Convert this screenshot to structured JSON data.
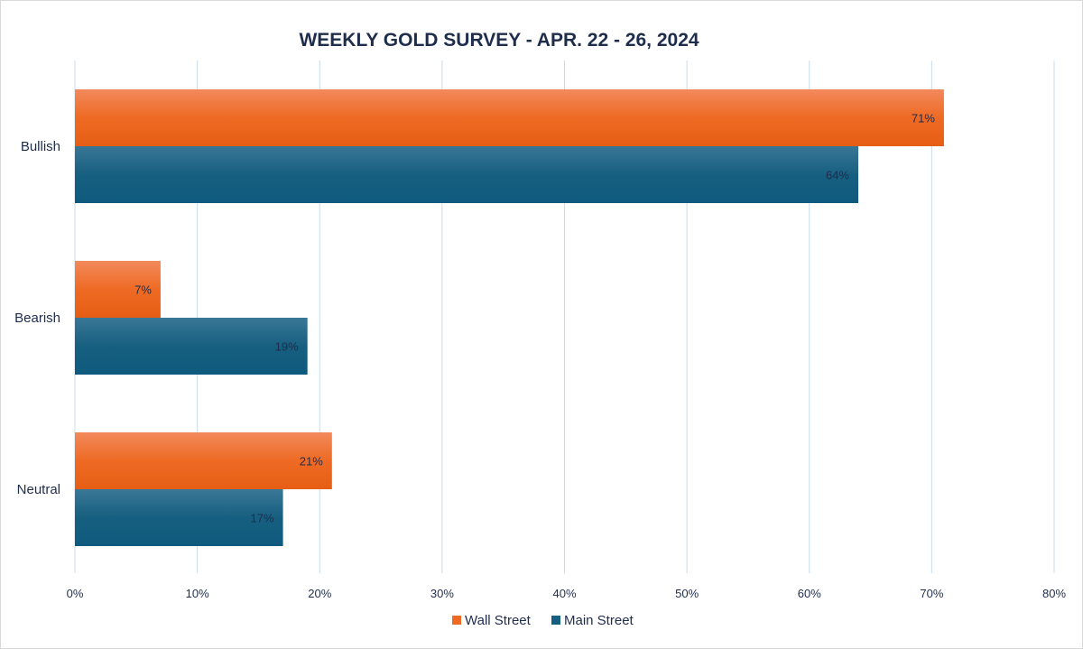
{
  "chart_data": {
    "type": "bar",
    "orientation": "horizontal",
    "title": "WEEKLY GOLD SURVEY - APR. 22 - 26, 2024",
    "categories": [
      "Bullish",
      "Bearish",
      "Neutral"
    ],
    "series": [
      {
        "name": "Wall Street",
        "values": [
          71,
          7,
          21
        ],
        "labels": [
          "71%",
          "7%",
          "21%"
        ],
        "color": "#ee6a24",
        "color_light": "#f28a5c",
        "color_dark": "#e65e14"
      },
      {
        "name": "Main Street",
        "values": [
          64,
          19,
          17
        ],
        "labels": [
          "64%",
          "19%",
          "17%"
        ],
        "color": "#175f80",
        "color_light": "#3a7796",
        "color_dark": "#0e5a7e"
      }
    ],
    "xlim": [
      0,
      80
    ],
    "xticks": [
      0,
      10,
      20,
      30,
      40,
      50,
      60,
      70,
      80
    ],
    "xtick_labels": [
      "0%",
      "10%",
      "20%",
      "30%",
      "40%",
      "50%",
      "60%",
      "70%",
      "80%"
    ],
    "grid": true,
    "grid_color": "#c9dcea",
    "legend_position": "bottom-center"
  }
}
